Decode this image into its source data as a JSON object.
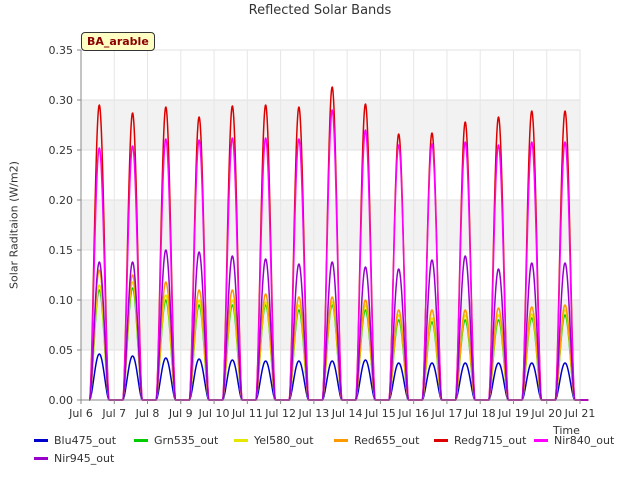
{
  "chart_data": {
    "type": "line",
    "title": "Reflected Solar Bands",
    "ylabel": "Solar Raditaion (W/m2)",
    "xlabel": "Time",
    "site_label": "BA_arable",
    "xlim": [
      6.0,
      21.0
    ],
    "ylim": [
      0.0,
      0.35
    ],
    "x_ticks": [
      {
        "value": 6,
        "label": "Jul 6"
      },
      {
        "value": 7,
        "label": "Jul 7"
      },
      {
        "value": 8,
        "label": "Jul 8"
      },
      {
        "value": 9,
        "label": "Jul 9"
      },
      {
        "value": 10,
        "label": "Jul 10"
      },
      {
        "value": 11,
        "label": "Jul 11"
      },
      {
        "value": 12,
        "label": "Jul 12"
      },
      {
        "value": 13,
        "label": "Jul 13"
      },
      {
        "value": 14,
        "label": "Jul 14"
      },
      {
        "value": 15,
        "label": "Jul 15"
      },
      {
        "value": 16,
        "label": "Jul 16"
      },
      {
        "value": 17,
        "label": "Jul 17"
      },
      {
        "value": 18,
        "label": "Jul 18"
      },
      {
        "value": 19,
        "label": "Jul 19"
      },
      {
        "value": 20,
        "label": "Jul 20"
      },
      {
        "value": 21,
        "label": "Jul 21"
      }
    ],
    "y_ticks": [
      {
        "value": 0.0,
        "label": "0.00"
      },
      {
        "value": 0.05,
        "label": "0.05"
      },
      {
        "value": 0.1,
        "label": "0.10"
      },
      {
        "value": 0.15,
        "label": "0.15"
      },
      {
        "value": 0.2,
        "label": "0.20"
      },
      {
        "value": 0.25,
        "label": "0.25"
      },
      {
        "value": 0.3,
        "label": "0.30"
      },
      {
        "value": 0.35,
        "label": "0.35"
      }
    ],
    "grid": true,
    "banded_background": true,
    "legend_position": "bottom",
    "days": [
      "Jul 6",
      "Jul 7",
      "Jul 8",
      "Jul 9",
      "Jul 10",
      "Jul 11",
      "Jul 12",
      "Jul 13",
      "Jul 14",
      "Jul 15",
      "Jul 16",
      "Jul 17",
      "Jul 18",
      "Jul 19",
      "Jul 20"
    ],
    "series": [
      {
        "name": "Blu475_out",
        "color": "#0000cc",
        "daily_peaks": [
          0.046,
          0.044,
          0.042,
          0.041,
          0.04,
          0.039,
          0.039,
          0.039,
          0.04,
          0.037,
          0.037,
          0.037,
          0.037,
          0.037,
          0.037
        ]
      },
      {
        "name": "Grn535_out",
        "color": "#00cc00",
        "daily_peaks": [
          0.11,
          0.112,
          0.1,
          0.095,
          0.095,
          0.095,
          0.09,
          0.095,
          0.09,
          0.08,
          0.078,
          0.08,
          0.08,
          0.082,
          0.085
        ]
      },
      {
        "name": "Yel580_out",
        "color": "#e6e600",
        "daily_peaks": [
          0.115,
          0.118,
          0.105,
          0.1,
          0.1,
          0.098,
          0.095,
          0.098,
          0.095,
          0.085,
          0.082,
          0.085,
          0.085,
          0.086,
          0.09
        ]
      },
      {
        "name": "Red655_out",
        "color": "#ff9900",
        "daily_peaks": [
          0.13,
          0.125,
          0.118,
          0.11,
          0.11,
          0.106,
          0.103,
          0.103,
          0.1,
          0.09,
          0.09,
          0.09,
          0.092,
          0.093,
          0.095
        ]
      },
      {
        "name": "Redg715_out",
        "color": "#dd0000",
        "daily_peaks": [
          0.295,
          0.287,
          0.293,
          0.283,
          0.294,
          0.295,
          0.293,
          0.313,
          0.296,
          0.266,
          0.267,
          0.278,
          0.283,
          0.289,
          0.289
        ]
      },
      {
        "name": "Nir840_out",
        "color": "#ff00ff",
        "daily_peaks": [
          0.252,
          0.254,
          0.261,
          0.26,
          0.262,
          0.262,
          0.261,
          0.29,
          0.27,
          0.255,
          0.256,
          0.258,
          0.255,
          0.258,
          0.258
        ]
      },
      {
        "name": "Nir945_out",
        "color": "#9900cc",
        "daily_peaks": [
          0.138,
          0.138,
          0.15,
          0.148,
          0.144,
          0.141,
          0.136,
          0.138,
          0.133,
          0.131,
          0.14,
          0.144,
          0.131,
          0.137,
          0.137
        ]
      }
    ]
  }
}
